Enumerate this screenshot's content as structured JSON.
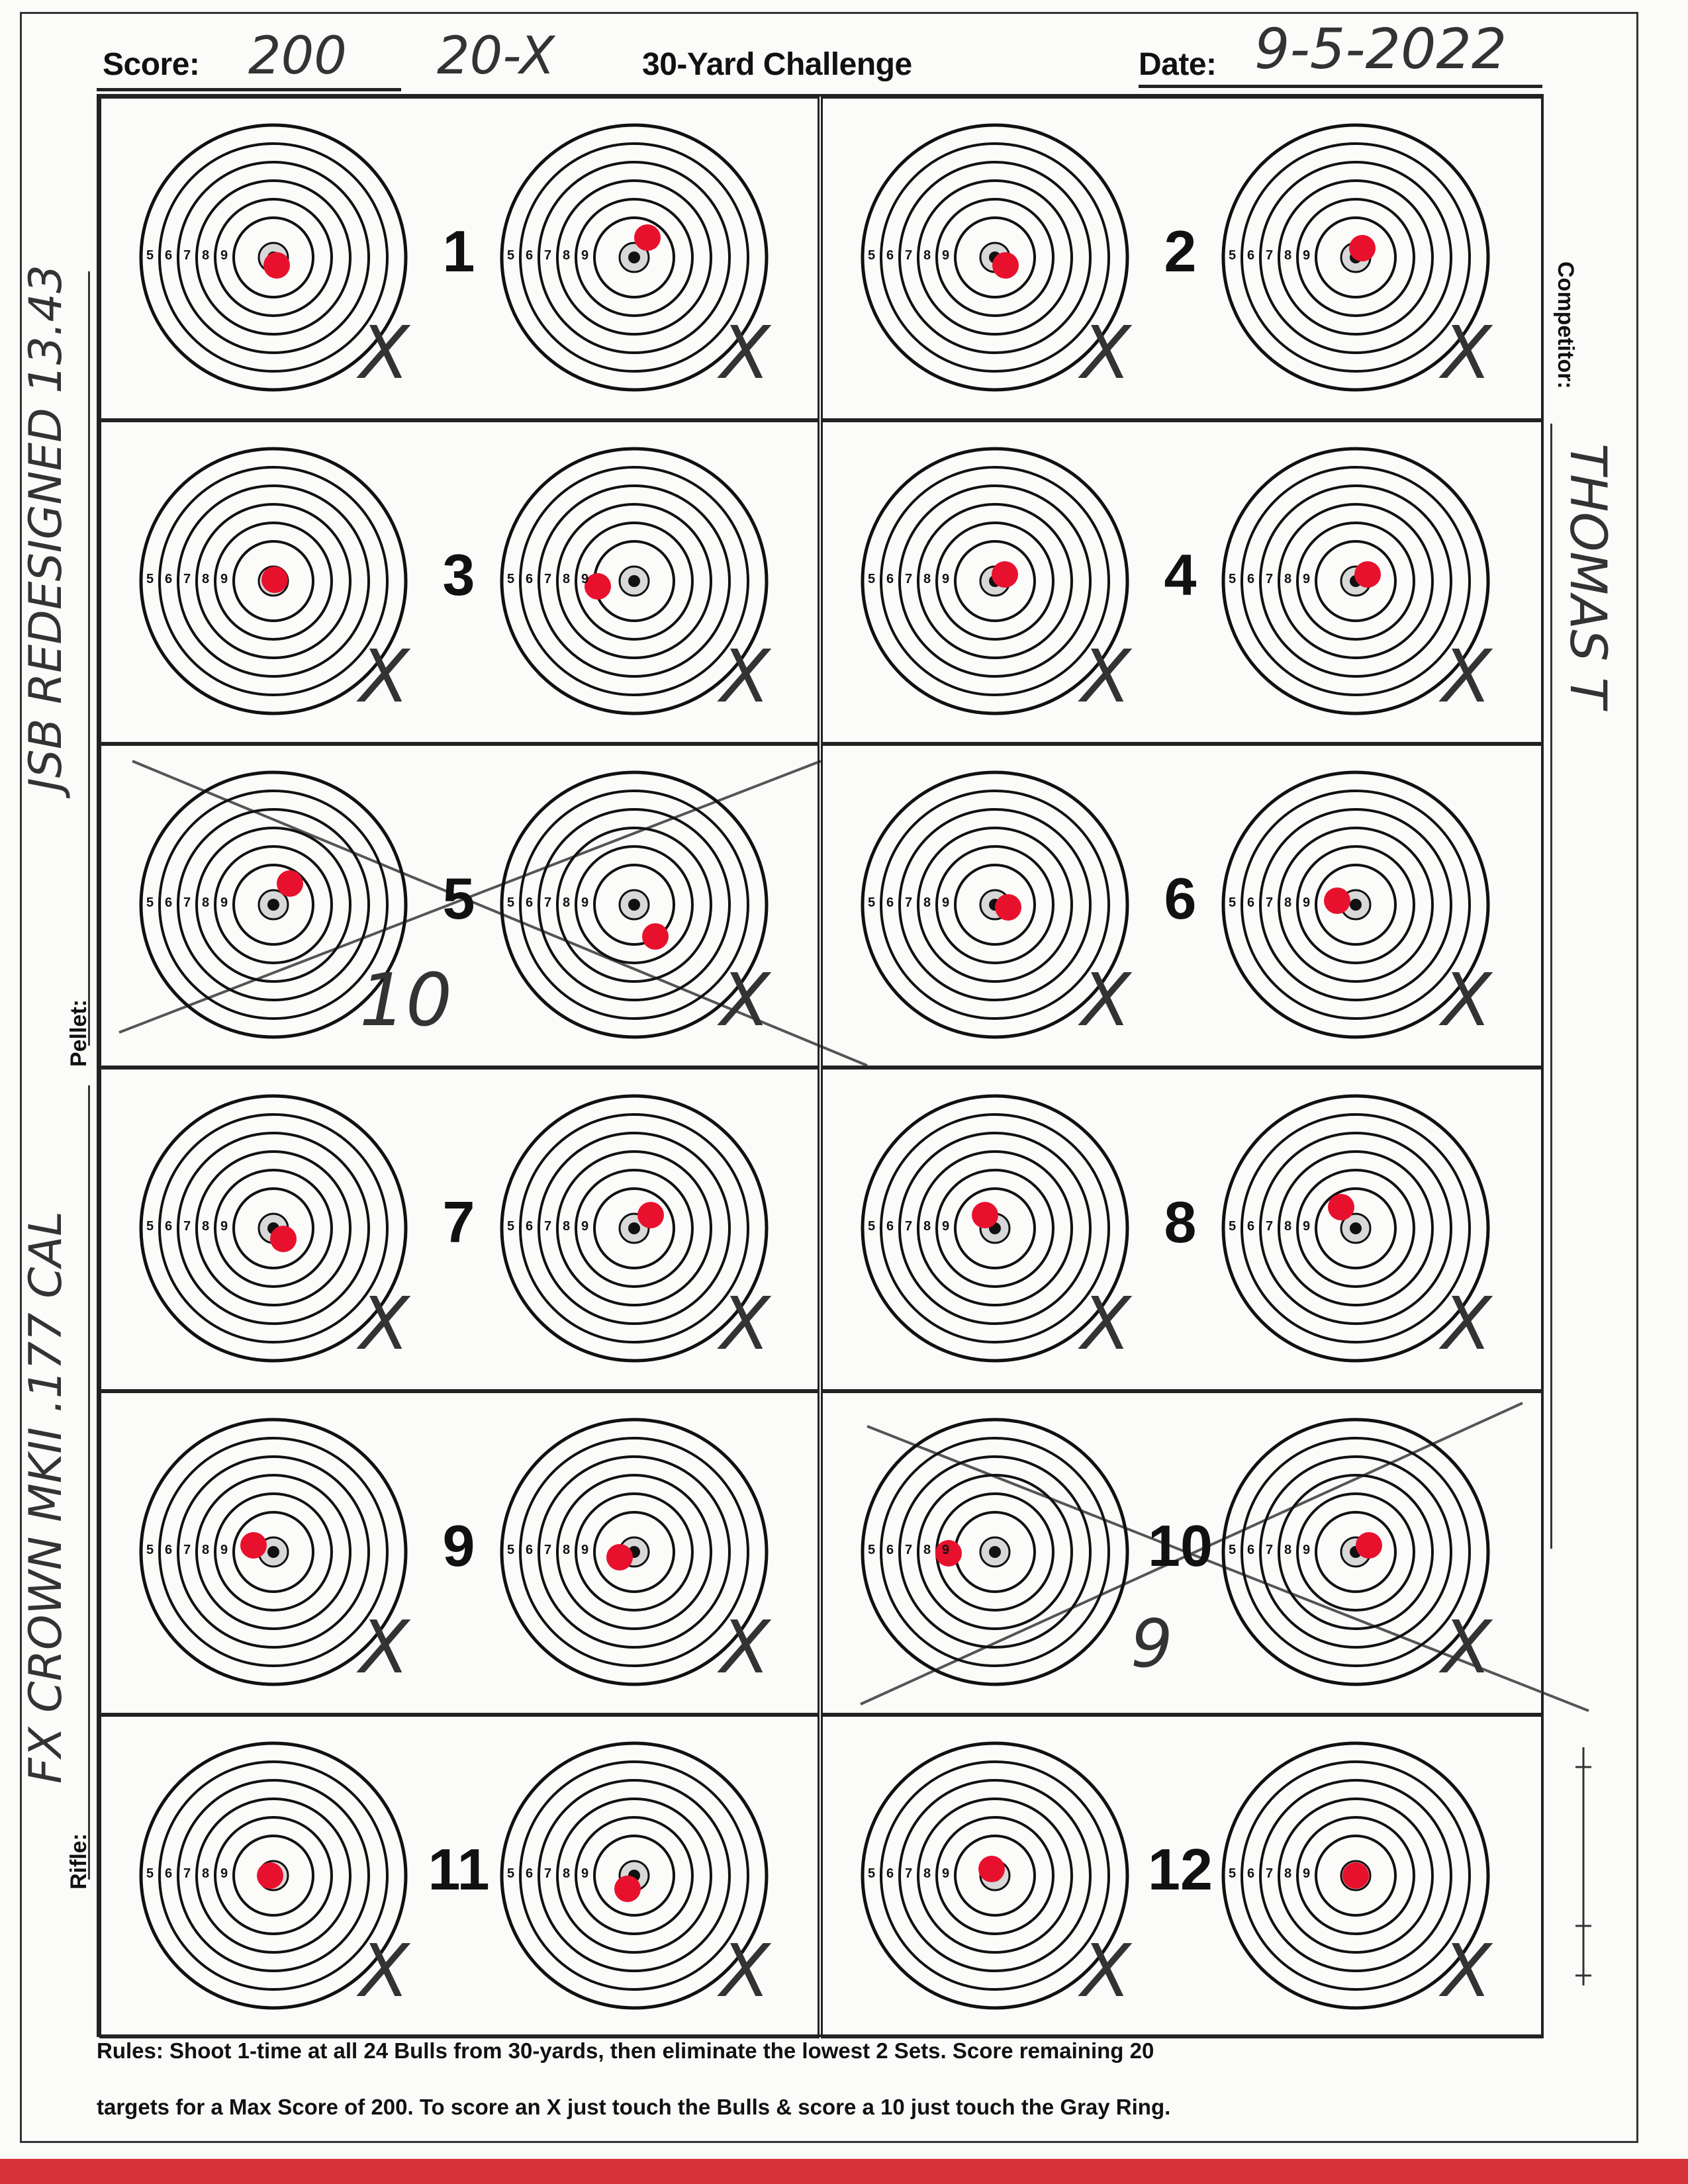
{
  "header": {
    "score_label": "Score:",
    "score_value": "200",
    "x_count": "20-X",
    "title": "30-Yard Challenge",
    "date_label": "Date:",
    "date_value": "9-5-2022"
  },
  "side": {
    "competitor_label": "Competitor:",
    "competitor_value": "THOMAS T",
    "pellet_label": "Pellet:",
    "pellet_value": "JSB REDESIGNED 13.43",
    "rifle_label": "Rifle:",
    "rifle_value": "FX CROWN MKII .177 CAL"
  },
  "ring_labels": [
    "5",
    "6",
    "7",
    "8",
    "9"
  ],
  "sets": [
    {
      "number": "1",
      "marks": [
        "X",
        "X"
      ],
      "set_score": "",
      "crossed_out": false
    },
    {
      "number": "2",
      "marks": [
        "X",
        "X"
      ],
      "set_score": "",
      "crossed_out": false
    },
    {
      "number": "3",
      "marks": [
        "X",
        "X"
      ],
      "set_score": "",
      "crossed_out": false
    },
    {
      "number": "4",
      "marks": [
        "X",
        "X"
      ],
      "set_score": "",
      "crossed_out": false
    },
    {
      "number": "5",
      "marks": [
        "10",
        "X"
      ],
      "set_score": "",
      "crossed_out": true
    },
    {
      "number": "6",
      "marks": [
        "X",
        "X"
      ],
      "set_score": "",
      "crossed_out": false
    },
    {
      "number": "7",
      "marks": [
        "X",
        "X"
      ],
      "set_score": "",
      "crossed_out": false
    },
    {
      "number": "8",
      "marks": [
        "X",
        "X"
      ],
      "set_score": "",
      "crossed_out": false
    },
    {
      "number": "9",
      "marks": [
        "X",
        "X"
      ],
      "set_score": "",
      "crossed_out": false
    },
    {
      "number": "10",
      "marks": [
        "",
        "X"
      ],
      "set_score": "9",
      "crossed_out": true
    },
    {
      "number": "11",
      "marks": [
        "X",
        "X"
      ],
      "set_score": "",
      "crossed_out": false
    },
    {
      "number": "12",
      "marks": [
        "X",
        "X"
      ],
      "set_score": "",
      "crossed_out": false
    }
  ],
  "rules": {
    "line1": "Rules: Shoot 1-time at all 24 Bulls from 30-yards, then eliminate the lowest 2 Sets. Score remaining 20",
    "line2": "targets for a Max Score of 200. To score an X just touch the Bulls & score a 10 just touch the Gray Ring."
  },
  "colors": {
    "hit": "#e8112d",
    "ink": "#222222",
    "band": "#d8333a"
  }
}
